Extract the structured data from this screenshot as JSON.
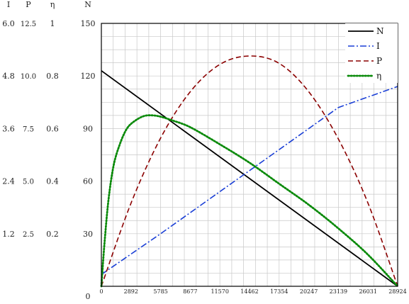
{
  "chart_data": {
    "type": "line",
    "x_ticks": [
      0,
      2892,
      5785,
      8677,
      11570,
      14462,
      17354,
      20247,
      23139,
      26031,
      28924
    ],
    "x_tick_labels": [
      "0",
      "2892",
      "5785",
      "8677",
      "11570",
      "14462",
      "17354",
      "20247",
      "23139",
      "26031",
      "28924"
    ],
    "xlim": [
      0,
      28924
    ],
    "axes": [
      {
        "header": "I",
        "ticks": [
          "1.2",
          "2.4",
          "3.6",
          "4.8",
          "6.0"
        ],
        "ylim": [
          0,
          6.0
        ]
      },
      {
        "header": "P",
        "ticks": [
          "2.5",
          "5.0",
          "7.5",
          "10.0",
          "12.5"
        ],
        "ylim": [
          0,
          12.5
        ]
      },
      {
        "header": "η",
        "ticks": [
          "0.2",
          "0.4",
          "0.6",
          "0.8",
          "1"
        ],
        "ylim": [
          0,
          1
        ]
      },
      {
        "header": "N",
        "ticks": [
          "0",
          "30",
          "60",
          "90",
          "120",
          "150"
        ],
        "ylim": [
          0,
          150
        ]
      }
    ],
    "series": [
      {
        "name": "N",
        "axis": "N",
        "color": "#000000",
        "style": "solid",
        "x": [
          0,
          28924
        ],
        "y": [
          123,
          0
        ]
      },
      {
        "name": "I",
        "axis": "I",
        "color": "#1a3fd6",
        "style": "dashdot",
        "x": [
          0,
          5785,
          11570,
          17354,
          23139,
          28924
        ],
        "y": [
          0.27,
          1.2,
          2.16,
          3.12,
          4.08,
          4.56
        ]
      },
      {
        "name": "P",
        "axis": "P",
        "color": "#8b0000",
        "style": "dashed",
        "x": [
          0,
          2892,
          5785,
          8677,
          11570,
          14462,
          17354,
          20247,
          23139,
          26031,
          28924
        ],
        "y": [
          0.0,
          3.95,
          7.05,
          9.25,
          10.55,
          10.95,
          10.6,
          9.25,
          7.0,
          3.95,
          0.0
        ]
      },
      {
        "name": "η",
        "axis": "η",
        "color": "#0a8a0a",
        "style": "dotted",
        "x": [
          0,
          300,
          700,
          1200,
          1800,
          2500,
          3300,
          4200,
          5000,
          5785,
          7000,
          8677,
          11570,
          14462,
          17354,
          20247,
          23139,
          26031,
          28924
        ],
        "y": [
          0.0,
          0.16,
          0.33,
          0.46,
          0.54,
          0.6,
          0.63,
          0.648,
          0.65,
          0.645,
          0.63,
          0.605,
          0.54,
          0.47,
          0.39,
          0.31,
          0.22,
          0.12,
          0.0
        ]
      }
    ],
    "legend": {
      "placement": "top-right",
      "entries": [
        "N",
        "I",
        "P",
        "η"
      ]
    },
    "grid": true
  }
}
